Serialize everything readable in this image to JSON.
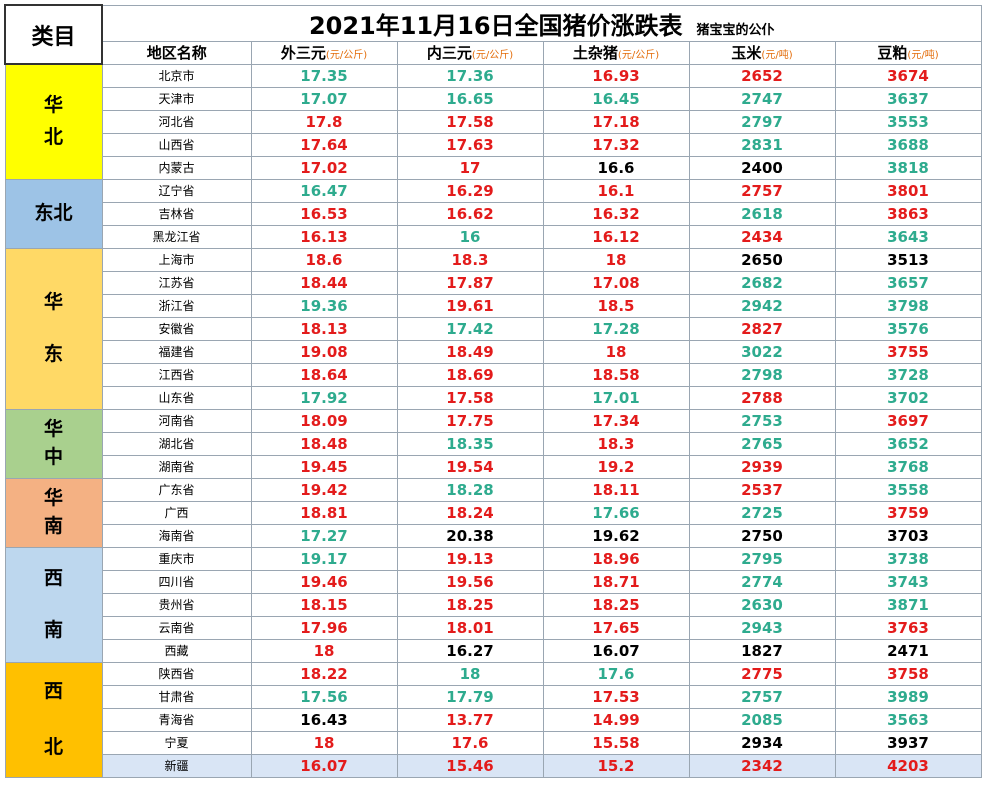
{
  "title": "2021年11月16日全国猪价涨跌表",
  "subtitle": "猪宝宝的公仆",
  "category_header": "类目",
  "columns": {
    "region": "地区名称",
    "waisan": "外三元",
    "neisan": "内三元",
    "tuza": "土杂猪",
    "yumi": "玉米",
    "doupo": "豆粕",
    "unit_jin": "(元/公斤)",
    "unit_dun": "(元/吨)"
  },
  "categories": {
    "huabei": [
      "华",
      "北"
    ],
    "dongbei": [
      "东北"
    ],
    "huadong": [
      "华",
      "东"
    ],
    "huazhong": [
      "华",
      "中"
    ],
    "huanan": [
      "华",
      "南"
    ],
    "xinan": [
      "西",
      "南"
    ],
    "xibei": [
      "西",
      "北"
    ]
  },
  "colors": {
    "red": "#e31b1b",
    "green": "#2eab8e",
    "black": "#000000"
  },
  "rows": [
    {
      "region": "北京市",
      "v": [
        [
          "17.35",
          "green"
        ],
        [
          "17.36",
          "green"
        ],
        [
          "16.93",
          "red"
        ],
        [
          "2652",
          "red"
        ],
        [
          "3674",
          "red"
        ]
      ]
    },
    {
      "region": "天津市",
      "v": [
        [
          "17.07",
          "green"
        ],
        [
          "16.65",
          "green"
        ],
        [
          "16.45",
          "green"
        ],
        [
          "2747",
          "green"
        ],
        [
          "3637",
          "green"
        ]
      ]
    },
    {
      "region": "河北省",
      "v": [
        [
          "17.8",
          "red"
        ],
        [
          "17.58",
          "red"
        ],
        [
          "17.18",
          "red"
        ],
        [
          "2797",
          "green"
        ],
        [
          "3553",
          "green"
        ]
      ]
    },
    {
      "region": "山西省",
      "v": [
        [
          "17.64",
          "red"
        ],
        [
          "17.63",
          "red"
        ],
        [
          "17.32",
          "red"
        ],
        [
          "2831",
          "green"
        ],
        [
          "3688",
          "green"
        ]
      ]
    },
    {
      "region": "内蒙古",
      "v": [
        [
          "17.02",
          "red"
        ],
        [
          "17",
          "red"
        ],
        [
          "16.6",
          "black"
        ],
        [
          "2400",
          "black"
        ],
        [
          "3818",
          "green"
        ]
      ]
    },
    {
      "region": "辽宁省",
      "v": [
        [
          "16.47",
          "green"
        ],
        [
          "16.29",
          "red"
        ],
        [
          "16.1",
          "red"
        ],
        [
          "2757",
          "red"
        ],
        [
          "3801",
          "red"
        ]
      ]
    },
    {
      "region": "吉林省",
      "v": [
        [
          "16.53",
          "red"
        ],
        [
          "16.62",
          "red"
        ],
        [
          "16.32",
          "red"
        ],
        [
          "2618",
          "green"
        ],
        [
          "3863",
          "red"
        ]
      ]
    },
    {
      "region": "黑龙江省",
      "v": [
        [
          "16.13",
          "red"
        ],
        [
          "16",
          "green"
        ],
        [
          "16.12",
          "red"
        ],
        [
          "2434",
          "red"
        ],
        [
          "3643",
          "green"
        ]
      ]
    },
    {
      "region": "上海市",
      "v": [
        [
          "18.6",
          "red"
        ],
        [
          "18.3",
          "red"
        ],
        [
          "18",
          "red"
        ],
        [
          "2650",
          "black"
        ],
        [
          "3513",
          "black"
        ]
      ]
    },
    {
      "region": "江苏省",
      "v": [
        [
          "18.44",
          "red"
        ],
        [
          "17.87",
          "red"
        ],
        [
          "17.08",
          "red"
        ],
        [
          "2682",
          "green"
        ],
        [
          "3657",
          "green"
        ]
      ]
    },
    {
      "region": "浙江省",
      "v": [
        [
          "19.36",
          "green"
        ],
        [
          "19.61",
          "red"
        ],
        [
          "18.5",
          "red"
        ],
        [
          "2942",
          "green"
        ],
        [
          "3798",
          "green"
        ]
      ]
    },
    {
      "region": "安徽省",
      "v": [
        [
          "18.13",
          "red"
        ],
        [
          "17.42",
          "green"
        ],
        [
          "17.28",
          "green"
        ],
        [
          "2827",
          "red"
        ],
        [
          "3576",
          "green"
        ]
      ]
    },
    {
      "region": "福建省",
      "v": [
        [
          "19.08",
          "red"
        ],
        [
          "18.49",
          "red"
        ],
        [
          "18",
          "red"
        ],
        [
          "3022",
          "green"
        ],
        [
          "3755",
          "red"
        ]
      ]
    },
    {
      "region": "江西省",
      "v": [
        [
          "18.64",
          "red"
        ],
        [
          "18.69",
          "red"
        ],
        [
          "18.58",
          "red"
        ],
        [
          "2798",
          "green"
        ],
        [
          "3728",
          "green"
        ]
      ]
    },
    {
      "region": "山东省",
      "v": [
        [
          "17.92",
          "green"
        ],
        [
          "17.58",
          "red"
        ],
        [
          "17.01",
          "green"
        ],
        [
          "2788",
          "red"
        ],
        [
          "3702",
          "green"
        ]
      ]
    },
    {
      "region": "河南省",
      "v": [
        [
          "18.09",
          "red"
        ],
        [
          "17.75",
          "red"
        ],
        [
          "17.34",
          "red"
        ],
        [
          "2753",
          "green"
        ],
        [
          "3697",
          "red"
        ]
      ]
    },
    {
      "region": "湖北省",
      "v": [
        [
          "18.48",
          "red"
        ],
        [
          "18.35",
          "green"
        ],
        [
          "18.3",
          "red"
        ],
        [
          "2765",
          "green"
        ],
        [
          "3652",
          "green"
        ]
      ]
    },
    {
      "region": "湖南省",
      "v": [
        [
          "19.45",
          "red"
        ],
        [
          "19.54",
          "red"
        ],
        [
          "19.2",
          "red"
        ],
        [
          "2939",
          "red"
        ],
        [
          "3768",
          "green"
        ]
      ]
    },
    {
      "region": "广东省",
      "v": [
        [
          "19.42",
          "red"
        ],
        [
          "18.28",
          "green"
        ],
        [
          "18.11",
          "red"
        ],
        [
          "2537",
          "red"
        ],
        [
          "3558",
          "green"
        ]
      ]
    },
    {
      "region": "广西",
      "v": [
        [
          "18.81",
          "red"
        ],
        [
          "18.24",
          "red"
        ],
        [
          "17.66",
          "green"
        ],
        [
          "2725",
          "green"
        ],
        [
          "3759",
          "red"
        ]
      ]
    },
    {
      "region": "海南省",
      "v": [
        [
          "17.27",
          "green"
        ],
        [
          "20.38",
          "black"
        ],
        [
          "19.62",
          "black"
        ],
        [
          "2750",
          "black"
        ],
        [
          "3703",
          "black"
        ]
      ]
    },
    {
      "region": "重庆市",
      "v": [
        [
          "19.17",
          "green"
        ],
        [
          "19.13",
          "red"
        ],
        [
          "18.96",
          "red"
        ],
        [
          "2795",
          "green"
        ],
        [
          "3738",
          "green"
        ]
      ]
    },
    {
      "region": "四川省",
      "v": [
        [
          "19.46",
          "red"
        ],
        [
          "19.56",
          "red"
        ],
        [
          "18.71",
          "red"
        ],
        [
          "2774",
          "green"
        ],
        [
          "3743",
          "green"
        ]
      ]
    },
    {
      "region": "贵州省",
      "v": [
        [
          "18.15",
          "red"
        ],
        [
          "18.25",
          "red"
        ],
        [
          "18.25",
          "red"
        ],
        [
          "2630",
          "green"
        ],
        [
          "3871",
          "green"
        ]
      ]
    },
    {
      "region": "云南省",
      "v": [
        [
          "17.96",
          "red"
        ],
        [
          "18.01",
          "red"
        ],
        [
          "17.65",
          "red"
        ],
        [
          "2943",
          "green"
        ],
        [
          "3763",
          "red"
        ]
      ]
    },
    {
      "region": "西藏",
      "v": [
        [
          "18",
          "red"
        ],
        [
          "16.27",
          "black"
        ],
        [
          "16.07",
          "black"
        ],
        [
          "1827",
          "black"
        ],
        [
          "2471",
          "black"
        ]
      ]
    },
    {
      "region": "陕西省",
      "v": [
        [
          "18.22",
          "red"
        ],
        [
          "18",
          "green"
        ],
        [
          "17.6",
          "green"
        ],
        [
          "2775",
          "red"
        ],
        [
          "3758",
          "red"
        ]
      ]
    },
    {
      "region": "甘肃省",
      "v": [
        [
          "17.56",
          "green"
        ],
        [
          "17.79",
          "green"
        ],
        [
          "17.53",
          "red"
        ],
        [
          "2757",
          "green"
        ],
        [
          "3989",
          "green"
        ]
      ]
    },
    {
      "region": "青海省",
      "v": [
        [
          "16.43",
          "black"
        ],
        [
          "13.77",
          "red"
        ],
        [
          "14.99",
          "red"
        ],
        [
          "2085",
          "green"
        ],
        [
          "3563",
          "green"
        ]
      ]
    },
    {
      "region": "宁夏",
      "v": [
        [
          "18",
          "red"
        ],
        [
          "17.6",
          "red"
        ],
        [
          "15.58",
          "red"
        ],
        [
          "2934",
          "black"
        ],
        [
          "3937",
          "black"
        ]
      ]
    },
    {
      "region": "新疆",
      "v": [
        [
          "16.07",
          "red"
        ],
        [
          "15.46",
          "red"
        ],
        [
          "15.2",
          "red"
        ],
        [
          "2342",
          "red"
        ],
        [
          "4203",
          "red"
        ]
      ]
    }
  ]
}
